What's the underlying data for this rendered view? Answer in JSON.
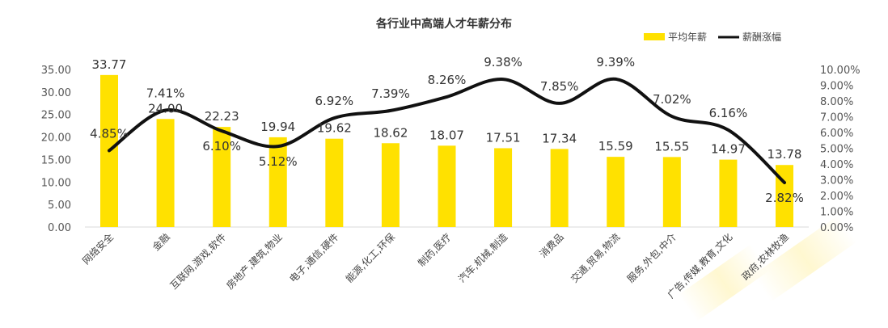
{
  "chart_data": {
    "type": "bar",
    "title": "各行业中高端人才年薪分布",
    "categories": [
      "网络安全",
      "金融",
      "互联网,游戏,软件",
      "房地产,建筑,物业",
      "电子,通信,硬件",
      "能源,化工,环保",
      "制药,医疗",
      "汽车,机械,制造",
      "消费品",
      "交通,贸易,物流",
      "服务,外包,中介",
      "广告,传媒,教育,文化",
      "政府,农林牧渔"
    ],
    "series": [
      {
        "name": "平均年薪",
        "type": "bar",
        "axis": "left",
        "color": "#FFE100",
        "values": [
          33.77,
          24.0,
          22.23,
          19.94,
          19.62,
          18.62,
          18.07,
          17.51,
          17.34,
          15.59,
          15.55,
          14.97,
          13.78
        ],
        "labels": [
          "33.77",
          "24.00",
          "22.23",
          "19.94",
          "19.62",
          "18.62",
          "18.07",
          "17.51",
          "17.34",
          "15.59",
          "15.55",
          "14.97",
          "13.78"
        ]
      },
      {
        "name": "薪酬涨幅",
        "type": "line",
        "axis": "right",
        "color": "#111111",
        "values": [
          4.85,
          7.41,
          6.1,
          5.12,
          6.92,
          7.39,
          8.26,
          9.38,
          7.85,
          9.39,
          7.02,
          6.16,
          2.82
        ],
        "labels": [
          "4.85%",
          "7.41%",
          "6.10%",
          "5.12%",
          "6.92%",
          "7.39%",
          "8.26%",
          "9.38%",
          "7.85%",
          "9.39%",
          "7.02%",
          "6.16%",
          "2.82%"
        ]
      }
    ],
    "y_left": {
      "min": 0,
      "max": 35,
      "ticks": [
        "0.00",
        "5.00",
        "10.00",
        "15.00",
        "20.00",
        "25.00",
        "30.00",
        "35.00"
      ]
    },
    "y_right": {
      "min": 0,
      "max": 10,
      "ticks": [
        "0.00%",
        "1.00%",
        "2.00%",
        "3.00%",
        "4.00%",
        "5.00%",
        "6.00%",
        "7.00%",
        "8.00%",
        "9.00%",
        "10.00%"
      ]
    },
    "grid": false,
    "legend_position": "top-right"
  }
}
